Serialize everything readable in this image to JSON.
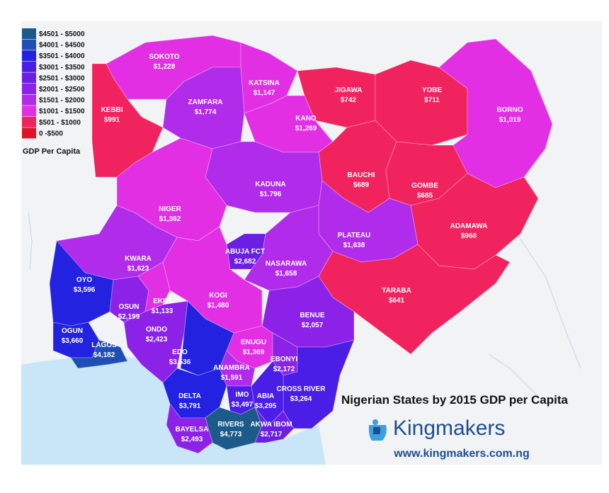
{
  "title": "Nigerian States by 2015 GDP per Capita",
  "legend": {
    "title": "GDP Per Capita",
    "items": [
      {
        "label": "$4501 - $5000",
        "color": "#1c5a8a"
      },
      {
        "label": "$4001 - $4500",
        "color": "#1f4fb5"
      },
      {
        "label": "$3501 - $4000",
        "color": "#2222e0"
      },
      {
        "label": "$3001 - $3500",
        "color": "#4a1ee6"
      },
      {
        "label": "$2501 - $3000",
        "color": "#6a1fe3"
      },
      {
        "label": "$2001 - $2500",
        "color": "#8c22e8"
      },
      {
        "label": "$1501 - $2000",
        "color": "#b12cea"
      },
      {
        "label": "$1001 - $1500",
        "color": "#e32fe3"
      },
      {
        "label": "$501 - $1000",
        "color": "#f0235e"
      },
      {
        "label": "0 -$500",
        "color": "#e01428"
      }
    ]
  },
  "states": [
    {
      "name": "SOKOTO",
      "value": "$1,228",
      "color": "#e32fe3"
    },
    {
      "name": "KATSINA",
      "value": "$1,147",
      "color": "#e32fe3"
    },
    {
      "name": "JIGAWA",
      "value": "$742",
      "color": "#f0235e"
    },
    {
      "name": "YOBE",
      "value": "$711",
      "color": "#f0235e"
    },
    {
      "name": "KEBBI",
      "value": "$991",
      "color": "#f0235e"
    },
    {
      "name": "ZAMFARA",
      "value": "$1,774",
      "color": "#b12cea"
    },
    {
      "name": "KANO",
      "value": "$1,269",
      "color": "#e32fe3"
    },
    {
      "name": "BORNO",
      "value": "$1,019",
      "color": "#e32fe3"
    },
    {
      "name": "BAUCHI",
      "value": "$689",
      "color": "#f0235e"
    },
    {
      "name": "GOMBE",
      "value": "$685",
      "color": "#f0235e"
    },
    {
      "name": "KADUNA",
      "value": "$1.796",
      "color": "#b12cea"
    },
    {
      "name": "NIGER",
      "value": "$1,362",
      "color": "#e32fe3"
    },
    {
      "name": "ADAMAWA",
      "value": "$968",
      "color": "#f0235e"
    },
    {
      "name": "PLATEAU",
      "value": "$1,638",
      "color": "#b12cea"
    },
    {
      "name": "ABUJA FCT",
      "value": "$2,682",
      "color": "#6a1fe3"
    },
    {
      "name": "KWARA",
      "value": "$1,623",
      "color": "#b12cea"
    },
    {
      "name": "NASARAWA",
      "value": "$1,658",
      "color": "#b12cea"
    },
    {
      "name": "OYO",
      "value": "$3,596",
      "color": "#2222e0"
    },
    {
      "name": "TARABA",
      "value": "$641",
      "color": "#f0235e"
    },
    {
      "name": "KOGI",
      "value": "$1,480",
      "color": "#e32fe3"
    },
    {
      "name": "OSUN",
      "value": "$2,199",
      "color": "#8c22e8"
    },
    {
      "name": "EKITI",
      "value": "$1,133",
      "color": "#e32fe3"
    },
    {
      "name": "BENUE",
      "value": "$2,057",
      "color": "#8c22e8"
    },
    {
      "name": "OGUN",
      "value": "$3,660",
      "color": "#2222e0"
    },
    {
      "name": "ONDO",
      "value": "$2,423",
      "color": "#8c22e8"
    },
    {
      "name": "LAGOS",
      "value": "$4,182",
      "color": "#1f4fb5"
    },
    {
      "name": "ENUGU",
      "value": "$1,369",
      "color": "#e32fe3"
    },
    {
      "name": "EDO",
      "value": "$3,536",
      "color": "#2222e0"
    },
    {
      "name": "EBONYI",
      "value": "$2,172",
      "color": "#8c22e8"
    },
    {
      "name": "ANAMBRA",
      "value": "$1,591",
      "color": "#b12cea"
    },
    {
      "name": "CROSS RIVER",
      "value": "$3,264",
      "color": "#4a1ee6"
    },
    {
      "name": "DELTA",
      "value": "$3,791",
      "color": "#2222e0"
    },
    {
      "name": "IMO",
      "value": "$3,497",
      "color": "#4a1ee6"
    },
    {
      "name": "ABIA",
      "value": "$3,295",
      "color": "#4a1ee6"
    },
    {
      "name": "RIVERS",
      "value": "$4,773",
      "color": "#1c5a8a"
    },
    {
      "name": "BAYELSA",
      "value": "$2,493",
      "color": "#8c22e8"
    },
    {
      "name": "AKWA IBOM",
      "value": "$2,717",
      "color": "#6a1fe3"
    }
  ],
  "brand": {
    "name": "Kingmakers",
    "url": "www.kingmakers.com.ng",
    "color": "#1d4e8f",
    "accent": "#3aa0e0"
  }
}
